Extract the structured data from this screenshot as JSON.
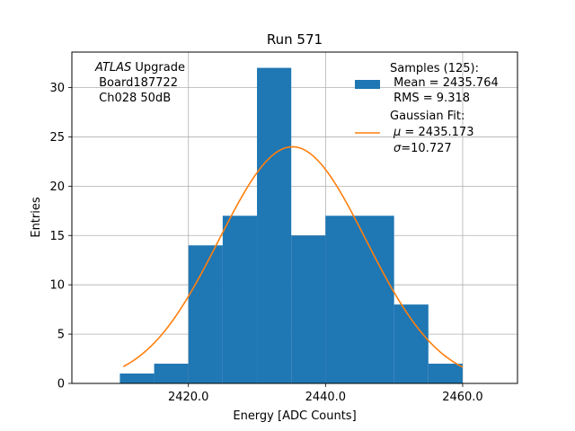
{
  "chart_data": {
    "type": "bar",
    "title": "Run 571",
    "xlabel": "Energy [ADC Counts]",
    "ylabel": "Entries",
    "xlim": [
      2403,
      2468
    ],
    "ylim": [
      0,
      33.6
    ],
    "xticks": [
      2420,
      2440,
      2460
    ],
    "xtick_labels": [
      "2420.0",
      "2440.0",
      "2460.0"
    ],
    "yticks": [
      0,
      5,
      10,
      15,
      20,
      25,
      30
    ],
    "ytick_labels": [
      "0",
      "5",
      "10",
      "15",
      "20",
      "25",
      "30"
    ],
    "grid": true,
    "bins": [
      {
        "x0": 2410,
        "x1": 2415,
        "count": 1
      },
      {
        "x0": 2415,
        "x1": 2420,
        "count": 2
      },
      {
        "x0": 2420,
        "x1": 2425,
        "count": 14
      },
      {
        "x0": 2425,
        "x1": 2430,
        "count": 17
      },
      {
        "x0": 2430,
        "x1": 2435,
        "count": 32
      },
      {
        "x0": 2435,
        "x1": 2440,
        "count": 15
      },
      {
        "x0": 2440,
        "x1": 2445,
        "count": 17
      },
      {
        "x0": 2445,
        "x1": 2450,
        "count": 17
      },
      {
        "x0": 2450,
        "x1": 2455,
        "count": 8
      },
      {
        "x0": 2455,
        "x1": 2460,
        "count": 2
      }
    ],
    "fit": {
      "mu": 2435.173,
      "sigma": 10.727,
      "amplitude": 24,
      "x_range": [
        2410.5,
        2460
      ]
    },
    "colors": {
      "bars": "#1f77b4",
      "fit": "#ff7f0e",
      "grid": "#b0b0b0"
    },
    "annotation": {
      "line1_italic": "ATLAS",
      "line1_rest": " Upgrade",
      "line2": " Board187722",
      "line3": " Ch028 50dB"
    },
    "legend": {
      "location": "top-right",
      "samples": {
        "line1": "Samples (125):",
        "line2": " Mean = 2435.764",
        "line3": " RMS = 9.318"
      },
      "gaussian": {
        "line1": "Gaussian Fit:",
        "line2_sym": "μ",
        "line2_rest": " = 2435.173",
        "line3_sym": "σ",
        "line3_rest": "=10.727"
      }
    }
  }
}
